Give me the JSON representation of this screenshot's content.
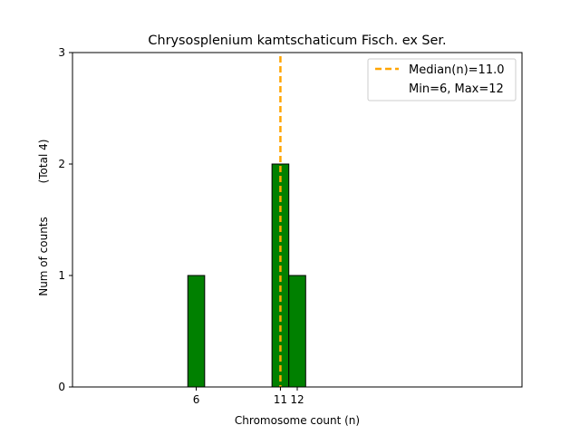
{
  "chart_data": {
    "type": "bar",
    "title": "Chrysosplenium kamtschaticum Fisch. ex Ser.",
    "xlabel": "Chromosome count (n)",
    "ylabel": "Num of counts",
    "ylabel_total": "(Total 4)",
    "xlim": [
      -1.35,
      25.35
    ],
    "ylim": [
      0,
      3
    ],
    "x_ticks": [
      {
        "value": 6,
        "label": "6"
      },
      {
        "value": 11,
        "label": "11"
      },
      {
        "value": 12,
        "label": "12"
      }
    ],
    "y_ticks": [
      {
        "value": 0,
        "label": "0"
      },
      {
        "value": 1,
        "label": "1"
      },
      {
        "value": 2,
        "label": "2"
      },
      {
        "value": 3,
        "label": "3"
      }
    ],
    "bars": [
      {
        "x": 1,
        "count": 0
      },
      {
        "x": 2,
        "count": 0
      },
      {
        "x": 3,
        "count": 0
      },
      {
        "x": 4,
        "count": 0
      },
      {
        "x": 5,
        "count": 0
      },
      {
        "x": 6,
        "count": 1
      },
      {
        "x": 7,
        "count": 0
      },
      {
        "x": 8,
        "count": 0
      },
      {
        "x": 9,
        "count": 0
      },
      {
        "x": 10,
        "count": 0
      },
      {
        "x": 11,
        "count": 2
      },
      {
        "x": 12,
        "count": 1
      },
      {
        "x": 13,
        "count": 0
      },
      {
        "x": 14,
        "count": 0
      },
      {
        "x": 15,
        "count": 0
      }
    ],
    "bar_color": "#008000",
    "bar_edge_color": "#000000",
    "median": 11.0,
    "median_color": "#FFA500",
    "legend": {
      "position": "top-right",
      "entries": [
        "Median(n)=11.0",
        "Min=6, Max=12"
      ]
    }
  }
}
